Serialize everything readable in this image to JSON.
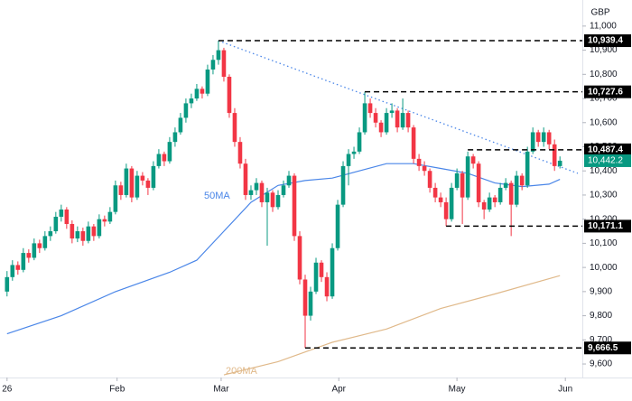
{
  "chart_data": {
    "type": "candlestick",
    "currency": "GBP",
    "up_color": "#089981",
    "down_color": "#f23645",
    "xlim": [
      -1.3,
      105.3
    ],
    "xticks": [
      {
        "value": 0,
        "label": "26"
      },
      {
        "value": 20.3,
        "label": "Feb"
      },
      {
        "value": 39.5,
        "label": "Mar"
      },
      {
        "value": 61.2,
        "label": "Apr"
      },
      {
        "value": 83,
        "label": "May"
      },
      {
        "value": 103,
        "label": "Jun"
      }
    ],
    "ylim": [
      9544,
      11108
    ],
    "yticks": [
      {
        "value": 9600,
        "label": "9,600"
      },
      {
        "value": 9700,
        "label": "9,700"
      },
      {
        "value": 9800,
        "label": "9,800"
      },
      {
        "value": 9900,
        "label": "9,900"
      },
      {
        "value": 10000,
        "label": "10,000"
      },
      {
        "value": 10100,
        "label": "10,100"
      },
      {
        "value": 10200,
        "label": "10,200"
      },
      {
        "value": 10300,
        "label": "10,300"
      },
      {
        "value": 10400,
        "label": "10,400"
      },
      {
        "value": 10500,
        "label": "10,500"
      },
      {
        "value": 10600,
        "label": "10,600"
      },
      {
        "value": 10700,
        "label": "10,700"
      },
      {
        "value": 10800,
        "label": "10,800"
      },
      {
        "value": 10900,
        "label": "10,900"
      },
      {
        "value": 11000,
        "label": "11,000"
      }
    ],
    "candles": [
      [
        9900,
        9985,
        9880,
        9960
      ],
      [
        9960,
        10030,
        9945,
        10010
      ],
      [
        10010,
        10025,
        9970,
        9990
      ],
      [
        9990,
        10080,
        9980,
        10060
      ],
      [
        10060,
        10075,
        10020,
        10040
      ],
      [
        10040,
        10120,
        10030,
        10100
      ],
      [
        10100,
        10115,
        10060,
        10080
      ],
      [
        10080,
        10150,
        10070,
        10130
      ],
      [
        10130,
        10170,
        10110,
        10150
      ],
      [
        10150,
        10230,
        10140,
        10210
      ],
      [
        10210,
        10260,
        10190,
        10240
      ],
      [
        10240,
        10250,
        10160,
        10180
      ],
      [
        10180,
        10195,
        10100,
        10120
      ],
      [
        10120,
        10170,
        10105,
        10150
      ],
      [
        10150,
        10165,
        10090,
        10110
      ],
      [
        10110,
        10190,
        10100,
        10170
      ],
      [
        10170,
        10180,
        10110,
        10130
      ],
      [
        10130,
        10220,
        10120,
        10200
      ],
      [
        10200,
        10215,
        10170,
        10190
      ],
      [
        10190,
        10250,
        10180,
        10230
      ],
      [
        10230,
        10360,
        10220,
        10340
      ],
      [
        10340,
        10355,
        10280,
        10300
      ],
      [
        10300,
        10430,
        10290,
        10410
      ],
      [
        10410,
        10420,
        10270,
        10290
      ],
      [
        10290,
        10400,
        10280,
        10380
      ],
      [
        10380,
        10395,
        10340,
        10360
      ],
      [
        10360,
        10370,
        10300,
        10330
      ],
      [
        10330,
        10440,
        10320,
        10420
      ],
      [
        10420,
        10490,
        10410,
        10470
      ],
      [
        10470,
        10480,
        10420,
        10440
      ],
      [
        10440,
        10540,
        10430,
        10520
      ],
      [
        10520,
        10580,
        10500,
        10560
      ],
      [
        10560,
        10640,
        10550,
        10620
      ],
      [
        10620,
        10700,
        10600,
        10680
      ],
      [
        10680,
        10720,
        10660,
        10700
      ],
      [
        10700,
        10760,
        10690,
        10740
      ],
      [
        10740,
        10750,
        10700,
        10720
      ],
      [
        10720,
        10840,
        10710,
        10820
      ],
      [
        10820,
        10880,
        10800,
        10860
      ],
      [
        10860,
        10939.4,
        10840,
        10900
      ],
      [
        10900,
        10910,
        10770,
        10790
      ],
      [
        10790,
        10800,
        10620,
        10640
      ],
      [
        10640,
        10660,
        10500,
        10520
      ],
      [
        10520,
        10540,
        10410,
        10430
      ],
      [
        10430,
        10450,
        10280,
        10300
      ],
      [
        10300,
        10340,
        10280,
        10320
      ],
      [
        10320,
        10370,
        10300,
        10350
      ],
      [
        10350,
        10360,
        10250,
        10270
      ],
      [
        10270,
        10330,
        10090,
        10310
      ],
      [
        10310,
        10320,
        10230,
        10250
      ],
      [
        10250,
        10320,
        10240,
        10300
      ],
      [
        10300,
        10360,
        10290,
        10340
      ],
      [
        10340,
        10400,
        10330,
        10380
      ],
      [
        10380,
        10390,
        10110,
        10130
      ],
      [
        10130,
        10150,
        9930,
        9950
      ],
      [
        9950,
        9970,
        9666.5,
        9800
      ],
      [
        9800,
        9920,
        9780,
        9900
      ],
      [
        9900,
        10040,
        9890,
        10020
      ],
      [
        10020,
        10030,
        9940,
        9960
      ],
      [
        9960,
        9980,
        9860,
        9880
      ],
      [
        9880,
        10100,
        9870,
        10080
      ],
      [
        10080,
        10280,
        10070,
        10260
      ],
      [
        10260,
        10440,
        10250,
        10420
      ],
      [
        10420,
        10490,
        10340,
        10470
      ],
      [
        10470,
        10500,
        10450,
        10480
      ],
      [
        10480,
        10580,
        10470,
        10560
      ],
      [
        10560,
        10727.6,
        10550,
        10680
      ],
      [
        10680,
        10700,
        10620,
        10640
      ],
      [
        10640,
        10660,
        10580,
        10600
      ],
      [
        10600,
        10610,
        10540,
        10560
      ],
      [
        10560,
        10660,
        10550,
        10640
      ],
      [
        10640,
        10680,
        10620,
        10650
      ],
      [
        10650,
        10660,
        10560,
        10580
      ],
      [
        10580,
        10700,
        10570,
        10640
      ],
      [
        10640,
        10650,
        10560,
        10580
      ],
      [
        10580,
        10590,
        10430,
        10450
      ],
      [
        10450,
        10470,
        10400,
        10420
      ],
      [
        10420,
        10440,
        10380,
        10400
      ],
      [
        10400,
        10410,
        10310,
        10330
      ],
      [
        10330,
        10350,
        10270,
        10290
      ],
      [
        10290,
        10310,
        10250,
        10270
      ],
      [
        10270,
        10290,
        10171.1,
        10200
      ],
      [
        10200,
        10350,
        10190,
        10330
      ],
      [
        10330,
        10410,
        10320,
        10390
      ],
      [
        10390,
        10400,
        10180,
        10290
      ],
      [
        10290,
        10480,
        10280,
        10460
      ],
      [
        10460,
        10470,
        10410,
        10430
      ],
      [
        10430,
        10440,
        10250,
        10270
      ],
      [
        10270,
        10280,
        10200,
        10240
      ],
      [
        10240,
        10310,
        10230,
        10290
      ],
      [
        10290,
        10300,
        10250,
        10270
      ],
      [
        10270,
        10350,
        10260,
        10330
      ],
      [
        10330,
        10370,
        10320,
        10350
      ],
      [
        10350,
        10360,
        10130,
        10260
      ],
      [
        10260,
        10400,
        10250,
        10380
      ],
      [
        10380,
        10390,
        10320,
        10340
      ],
      [
        10340,
        10500,
        10330,
        10480
      ],
      [
        10480,
        10580,
        10470,
        10560
      ],
      [
        10560,
        10570,
        10500,
        10520
      ],
      [
        10520,
        10580,
        10500,
        10560
      ],
      [
        10560,
        10570,
        10490,
        10510
      ],
      [
        10510,
        10530,
        10400,
        10420
      ],
      [
        10420,
        10460,
        10410,
        10442.2
      ]
    ],
    "last_price_label": "10,442.2",
    "moving_averages": [
      {
        "name": "50MA",
        "color": "#4a86e8",
        "x": [
          0,
          10,
          20,
          30,
          35,
          40,
          45,
          50,
          55,
          60,
          65,
          70,
          75,
          80,
          85,
          90,
          95,
          100,
          102
        ],
        "values": [
          9725,
          9800,
          9900,
          9980,
          10030,
          10150,
          10270,
          10340,
          10360,
          10370,
          10400,
          10430,
          10430,
          10410,
          10390,
          10350,
          10335,
          10345,
          10365
        ]
      },
      {
        "name": "200MA",
        "color": "#e0b98a",
        "x": [
          40,
          50,
          60,
          70,
          80,
          90,
          102
        ],
        "values": [
          9555,
          9610,
          9690,
          9745,
          9830,
          9890,
          9966
        ]
      }
    ],
    "trendline": {
      "color": "#4a86e8",
      "x": [
        39,
        105.3
      ],
      "values": [
        10939.4,
        10390
      ]
    },
    "levels": [
      {
        "value": 10939.4,
        "label": "10,939.4",
        "start": 39
      },
      {
        "value": 10727.6,
        "label": "10,727.6",
        "start": 66
      },
      {
        "value": 10487.4,
        "label": "10,487.4",
        "start": 85
      },
      {
        "value": 10171.1,
        "label": "10,171.1",
        "start": 81
      },
      {
        "value": 9666.5,
        "label": "9,666.5",
        "start": 55
      }
    ]
  }
}
